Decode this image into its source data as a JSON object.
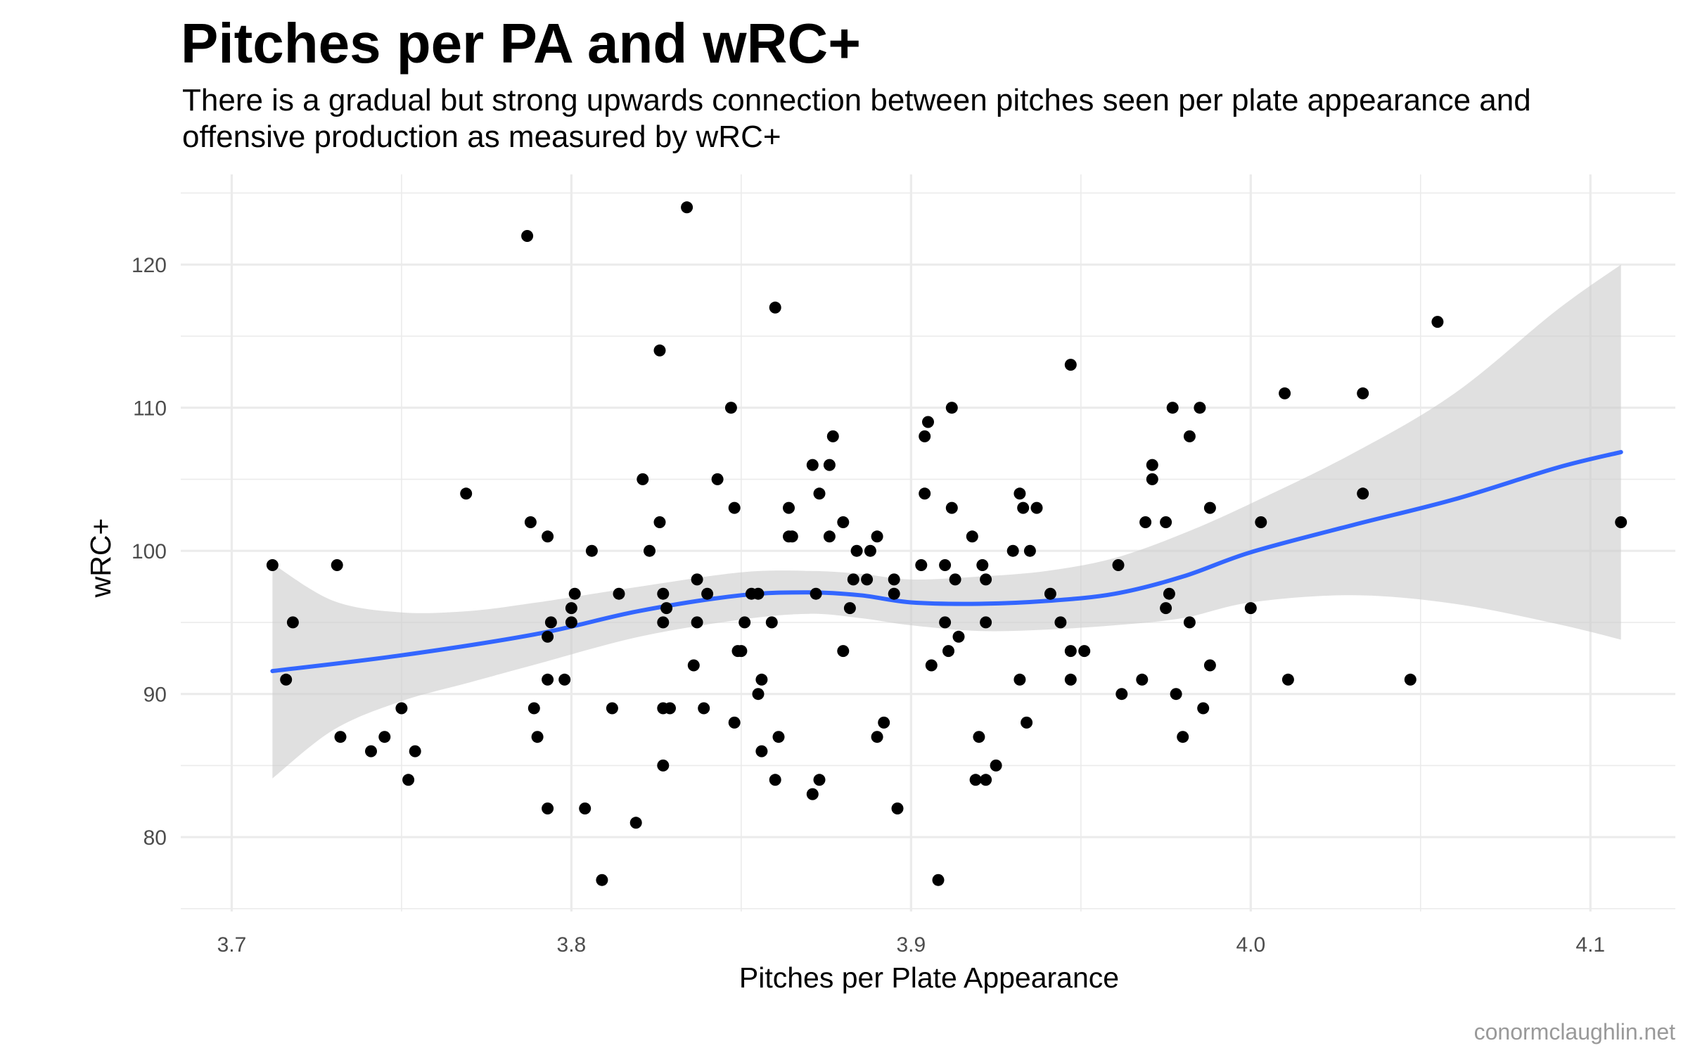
{
  "chart_data": {
    "type": "scatter",
    "title": "Pitches per PA and wRC+",
    "subtitle": "There is a gradual but strong upwards connection between pitches seen per plate appearance and offensive production as measured by wRC+",
    "xlabel": "Pitches per Plate Appearance",
    "ylabel": "wRC+",
    "xlim": [
      3.685,
      4.125
    ],
    "ylim": [
      74.8,
      126.3
    ],
    "x_ticks": [
      3.7,
      3.8,
      3.9,
      4.0,
      4.1
    ],
    "x_tick_labels": [
      "3.7",
      "3.8",
      "3.9",
      "4.0",
      "4.1"
    ],
    "y_ticks": [
      80,
      90,
      100,
      110,
      120
    ],
    "y_tick_labels": [
      "80",
      "90",
      "100",
      "110",
      "120"
    ],
    "grid": true,
    "legend": "none",
    "caption": "conormclaughlin.net",
    "colors": {
      "points": "#000000",
      "smooth_line": "#3366ff",
      "confidence_band": "#cccccc",
      "grid": "#ebebeb"
    },
    "points": [
      [
        3.712,
        99
      ],
      [
        3.716,
        91
      ],
      [
        3.718,
        95
      ],
      [
        3.731,
        99
      ],
      [
        3.732,
        87
      ],
      [
        3.741,
        86
      ],
      [
        3.745,
        87
      ],
      [
        3.75,
        89
      ],
      [
        3.752,
        84
      ],
      [
        3.754,
        86
      ],
      [
        3.769,
        104
      ],
      [
        3.787,
        122
      ],
      [
        3.788,
        102
      ],
      [
        3.789,
        89
      ],
      [
        3.79,
        87
      ],
      [
        3.793,
        101
      ],
      [
        3.793,
        94
      ],
      [
        3.793,
        91
      ],
      [
        3.793,
        82
      ],
      [
        3.794,
        95
      ],
      [
        3.798,
        91
      ],
      [
        3.8,
        95
      ],
      [
        3.8,
        96
      ],
      [
        3.801,
        97
      ],
      [
        3.804,
        82
      ],
      [
        3.806,
        100
      ],
      [
        3.809,
        77
      ],
      [
        3.812,
        89
      ],
      [
        3.814,
        97
      ],
      [
        3.819,
        81
      ],
      [
        3.821,
        105
      ],
      [
        3.823,
        100
      ],
      [
        3.826,
        114
      ],
      [
        3.826,
        102
      ],
      [
        3.827,
        89
      ],
      [
        3.827,
        85
      ],
      [
        3.827,
        97
      ],
      [
        3.827,
        95
      ],
      [
        3.828,
        96
      ],
      [
        3.829,
        89
      ],
      [
        3.834,
        124
      ],
      [
        3.836,
        92
      ],
      [
        3.837,
        95
      ],
      [
        3.837,
        98
      ],
      [
        3.839,
        89
      ],
      [
        3.84,
        97
      ],
      [
        3.843,
        105
      ],
      [
        3.847,
        110
      ],
      [
        3.848,
        88
      ],
      [
        3.848,
        103
      ],
      [
        3.849,
        93
      ],
      [
        3.85,
        93
      ],
      [
        3.851,
        95
      ],
      [
        3.853,
        97
      ],
      [
        3.855,
        90
      ],
      [
        3.855,
        97
      ],
      [
        3.856,
        91
      ],
      [
        3.856,
        86
      ],
      [
        3.859,
        95
      ],
      [
        3.86,
        84
      ],
      [
        3.86,
        117
      ],
      [
        3.861,
        87
      ],
      [
        3.864,
        103
      ],
      [
        3.864,
        101
      ],
      [
        3.865,
        101
      ],
      [
        3.871,
        83
      ],
      [
        3.871,
        106
      ],
      [
        3.872,
        97
      ],
      [
        3.873,
        104
      ],
      [
        3.873,
        84
      ],
      [
        3.876,
        106
      ],
      [
        3.876,
        101
      ],
      [
        3.877,
        108
      ],
      [
        3.88,
        102
      ],
      [
        3.88,
        93
      ],
      [
        3.882,
        96
      ],
      [
        3.883,
        98
      ],
      [
        3.884,
        100
      ],
      [
        3.887,
        98
      ],
      [
        3.888,
        100
      ],
      [
        3.89,
        101
      ],
      [
        3.89,
        87
      ],
      [
        3.892,
        88
      ],
      [
        3.895,
        98
      ],
      [
        3.895,
        97
      ],
      [
        3.896,
        82
      ],
      [
        3.903,
        99
      ],
      [
        3.904,
        108
      ],
      [
        3.904,
        104
      ],
      [
        3.905,
        109
      ],
      [
        3.906,
        92
      ],
      [
        3.908,
        77
      ],
      [
        3.91,
        99
      ],
      [
        3.91,
        95
      ],
      [
        3.911,
        93
      ],
      [
        3.912,
        110
      ],
      [
        3.912,
        103
      ],
      [
        3.913,
        98
      ],
      [
        3.914,
        94
      ],
      [
        3.918,
        101
      ],
      [
        3.919,
        84
      ],
      [
        3.92,
        87
      ],
      [
        3.921,
        99
      ],
      [
        3.922,
        98
      ],
      [
        3.922,
        95
      ],
      [
        3.922,
        84
      ],
      [
        3.925,
        85
      ],
      [
        3.93,
        100
      ],
      [
        3.932,
        91
      ],
      [
        3.932,
        104
      ],
      [
        3.933,
        103
      ],
      [
        3.934,
        88
      ],
      [
        3.935,
        100
      ],
      [
        3.937,
        103
      ],
      [
        3.941,
        97
      ],
      [
        3.944,
        95
      ],
      [
        3.947,
        113
      ],
      [
        3.947,
        91
      ],
      [
        3.947,
        93
      ],
      [
        3.951,
        93
      ],
      [
        3.961,
        99
      ],
      [
        3.962,
        90
      ],
      [
        3.968,
        91
      ],
      [
        3.969,
        102
      ],
      [
        3.971,
        106
      ],
      [
        3.971,
        105
      ],
      [
        3.975,
        96
      ],
      [
        3.975,
        102
      ],
      [
        3.976,
        97
      ],
      [
        3.977,
        110
      ],
      [
        3.978,
        90
      ],
      [
        3.98,
        87
      ],
      [
        3.982,
        108
      ],
      [
        3.982,
        95
      ],
      [
        3.985,
        110
      ],
      [
        3.986,
        89
      ],
      [
        3.988,
        103
      ],
      [
        3.988,
        92
      ],
      [
        4.0,
        96
      ],
      [
        4.003,
        102
      ],
      [
        4.01,
        111
      ],
      [
        4.011,
        91
      ],
      [
        4.033,
        111
      ],
      [
        4.033,
        104
      ],
      [
        4.047,
        91
      ],
      [
        4.055,
        116
      ],
      [
        4.109,
        102
      ]
    ],
    "smooth_line": [
      [
        3.712,
        91.6
      ],
      [
        3.75,
        92.7
      ],
      [
        3.79,
        94.2
      ],
      [
        3.82,
        95.8
      ],
      [
        3.85,
        96.9
      ],
      [
        3.87,
        97.1
      ],
      [
        3.885,
        96.9
      ],
      [
        3.9,
        96.4
      ],
      [
        3.92,
        96.3
      ],
      [
        3.94,
        96.5
      ],
      [
        3.96,
        97.0
      ],
      [
        3.98,
        98.2
      ],
      [
        4.0,
        99.9
      ],
      [
        4.03,
        101.8
      ],
      [
        4.06,
        103.6
      ],
      [
        4.09,
        105.8
      ],
      [
        4.109,
        106.9
      ]
    ],
    "confidence_upper": [
      [
        3.712,
        99.1
      ],
      [
        3.73,
        96.5
      ],
      [
        3.75,
        95.7
      ],
      [
        3.77,
        95.8
      ],
      [
        3.79,
        96.4
      ],
      [
        3.82,
        97.5
      ],
      [
        3.85,
        98.5
      ],
      [
        3.87,
        98.6
      ],
      [
        3.885,
        98.4
      ],
      [
        3.9,
        98.0
      ],
      [
        3.92,
        98.2
      ],
      [
        3.94,
        98.6
      ],
      [
        3.96,
        99.5
      ],
      [
        3.98,
        101.2
      ],
      [
        4.0,
        103.3
      ],
      [
        4.03,
        106.8
      ],
      [
        4.06,
        111.0
      ],
      [
        4.09,
        116.8
      ],
      [
        4.109,
        120.0
      ]
    ],
    "confidence_lower": [
      [
        3.712,
        84.1
      ],
      [
        3.73,
        87.5
      ],
      [
        3.75,
        89.5
      ],
      [
        3.77,
        90.8
      ],
      [
        3.79,
        92.1
      ],
      [
        3.82,
        94.0
      ],
      [
        3.85,
        95.2
      ],
      [
        3.87,
        95.6
      ],
      [
        3.885,
        95.3
      ],
      [
        3.9,
        94.8
      ],
      [
        3.92,
        94.4
      ],
      [
        3.94,
        94.5
      ],
      [
        3.96,
        94.8
      ],
      [
        3.98,
        95.3
      ],
      [
        4.0,
        96.4
      ],
      [
        4.03,
        96.9
      ],
      [
        4.06,
        96.3
      ],
      [
        4.09,
        94.9
      ],
      [
        4.109,
        93.8
      ]
    ]
  }
}
